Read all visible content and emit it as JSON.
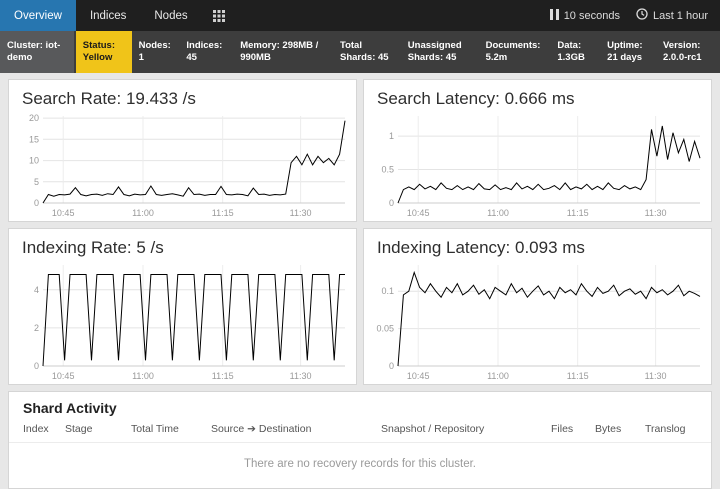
{
  "colors": {
    "active_tab": "#2776b0",
    "status_yellow": "#f0c419",
    "navbar_bg": "#1f1f1f",
    "cluster_bar_bg": "#3d3d3d"
  },
  "navbar": {
    "tabs": [
      {
        "label": "Overview",
        "active": true
      },
      {
        "label": "Indices",
        "active": false
      },
      {
        "label": "Nodes",
        "active": false
      }
    ],
    "refresh_interval": "10 seconds",
    "time_range": "Last 1 hour"
  },
  "cluster_bar": {
    "items": [
      {
        "text": "Cluster: iot-demo"
      },
      {
        "text": "Status: Yellow"
      },
      {
        "text": "Nodes: 1"
      },
      {
        "text": "Indices: 45"
      },
      {
        "text": "Memory: 298MB / 990MB"
      },
      {
        "text": "Total Shards: 45"
      },
      {
        "text": "Unassigned Shards: 45"
      },
      {
        "text": "Documents: 5.2m"
      },
      {
        "text": "Data: 1.3GB"
      },
      {
        "text": "Uptime: 21 days"
      },
      {
        "text": "Version: 2.0.0-rc1"
      }
    ]
  },
  "shard_activity": {
    "title": "Shard Activity",
    "columns": [
      "Index",
      "Stage",
      "Total Time",
      "Source ➔ Destination",
      "Snapshot / Repository",
      "Files",
      "Bytes",
      "Translog"
    ],
    "empty_message": "There are no recovery records for this cluster."
  },
  "chart_data": [
    {
      "type": "line",
      "title": "Search Rate: 19.433 /s",
      "ylabel": "",
      "ylim": [
        0,
        20.5
      ],
      "yticks": [
        0,
        5,
        10,
        15,
        20
      ],
      "x_ticks": [
        {
          "pos": 0.067,
          "label": "10:45"
        },
        {
          "pos": 0.331,
          "label": "11:00"
        },
        {
          "pos": 0.595,
          "label": "11:15"
        },
        {
          "pos": 0.853,
          "label": "11:30"
        }
      ],
      "values": [
        0,
        2,
        1.6,
        2,
        1.9,
        2.1,
        3.6,
        2,
        1.7,
        2,
        2.1,
        1.8,
        2.2,
        2,
        3.8,
        2,
        1.7,
        2.1,
        1.9,
        2,
        4,
        2,
        1.8,
        2,
        2.2,
        1.9,
        1.6,
        3.6,
        2,
        2.1,
        1.8,
        2,
        2,
        3.9,
        2,
        1.9,
        2.1,
        2,
        1.7,
        3.5,
        2,
        2.1,
        1.8,
        2,
        1.9,
        2.1,
        9.5,
        11,
        9,
        11.5,
        9,
        11,
        9.5,
        10.5,
        9,
        11.5,
        19.4
      ]
    },
    {
      "type": "line",
      "title": "Search Latency: 0.666 ms",
      "ylabel": "",
      "ylim": [
        0,
        1.3
      ],
      "yticks": [
        0,
        0.5,
        1
      ],
      "x_ticks": [
        {
          "pos": 0.067,
          "label": "10:45"
        },
        {
          "pos": 0.331,
          "label": "11:00"
        },
        {
          "pos": 0.595,
          "label": "11:15"
        },
        {
          "pos": 0.853,
          "label": "11:30"
        }
      ],
      "values": [
        0,
        0.2,
        0.24,
        0.2,
        0.28,
        0.21,
        0.25,
        0.2,
        0.3,
        0.22,
        0.2,
        0.26,
        0.2,
        0.24,
        0.2,
        0.29,
        0.21,
        0.2,
        0.27,
        0.2,
        0.23,
        0.2,
        0.3,
        0.21,
        0.25,
        0.2,
        0.28,
        0.2,
        0.22,
        0.26,
        0.2,
        0.3,
        0.2,
        0.24,
        0.21,
        0.28,
        0.2,
        0.25,
        0.2,
        0.3,
        0.22,
        0.2,
        0.26,
        0.21,
        0.24,
        0.2,
        0.35,
        1.1,
        0.7,
        1.15,
        0.65,
        1.05,
        0.75,
        0.95,
        0.62,
        0.92,
        0.67
      ]
    },
    {
      "type": "line",
      "title": "Indexing Rate: 5 /s",
      "ylabel": "",
      "ylim": [
        0,
        5.3
      ],
      "yticks": [
        0,
        2,
        4
      ],
      "x_ticks": [
        {
          "pos": 0.067,
          "label": "10:45"
        },
        {
          "pos": 0.331,
          "label": "11:00"
        },
        {
          "pos": 0.595,
          "label": "11:15"
        },
        {
          "pos": 0.853,
          "label": "11:30"
        }
      ],
      "values": [
        0,
        4.8,
        4.8,
        4.8,
        0.3,
        4.8,
        4.8,
        4.8,
        4.8,
        0.3,
        4.8,
        4.8,
        4.8,
        4.8,
        0.3,
        4.8,
        4.8,
        4.8,
        4.8,
        0.3,
        4.8,
        4.8,
        4.8,
        4.8,
        0.3,
        4.8,
        4.8,
        4.8,
        4.8,
        0.3,
        4.8,
        4.8,
        4.8,
        4.8,
        0.3,
        4.8,
        4.8,
        4.8,
        4.8,
        0.3,
        4.8,
        4.8,
        4.8,
        4.8,
        0.3,
        4.8,
        4.8,
        4.8,
        4.8,
        0.3,
        4.8,
        4.8,
        4.8,
        4.8,
        0.3,
        4.8,
        4.8
      ]
    },
    {
      "type": "line",
      "title": "Indexing Latency: 0.093 ms",
      "ylabel": "",
      "ylim": [
        0,
        0.135
      ],
      "yticks": [
        0,
        0.05,
        0.1
      ],
      "x_ticks": [
        {
          "pos": 0.067,
          "label": "10:45"
        },
        {
          "pos": 0.331,
          "label": "11:00"
        },
        {
          "pos": 0.595,
          "label": "11:15"
        },
        {
          "pos": 0.853,
          "label": "11:30"
        }
      ],
      "values": [
        0,
        0.095,
        0.1,
        0.125,
        0.105,
        0.098,
        0.11,
        0.1,
        0.092,
        0.105,
        0.098,
        0.11,
        0.095,
        0.1,
        0.108,
        0.096,
        0.102,
        0.09,
        0.105,
        0.1,
        0.095,
        0.11,
        0.098,
        0.104,
        0.092,
        0.1,
        0.107,
        0.095,
        0.1,
        0.09,
        0.105,
        0.098,
        0.102,
        0.095,
        0.11,
        0.1,
        0.093,
        0.105,
        0.097,
        0.1,
        0.108,
        0.094,
        0.1,
        0.103,
        0.096,
        0.1,
        0.09,
        0.105,
        0.098,
        0.102,
        0.095,
        0.1,
        0.108,
        0.094,
        0.1,
        0.097,
        0.093
      ]
    }
  ]
}
